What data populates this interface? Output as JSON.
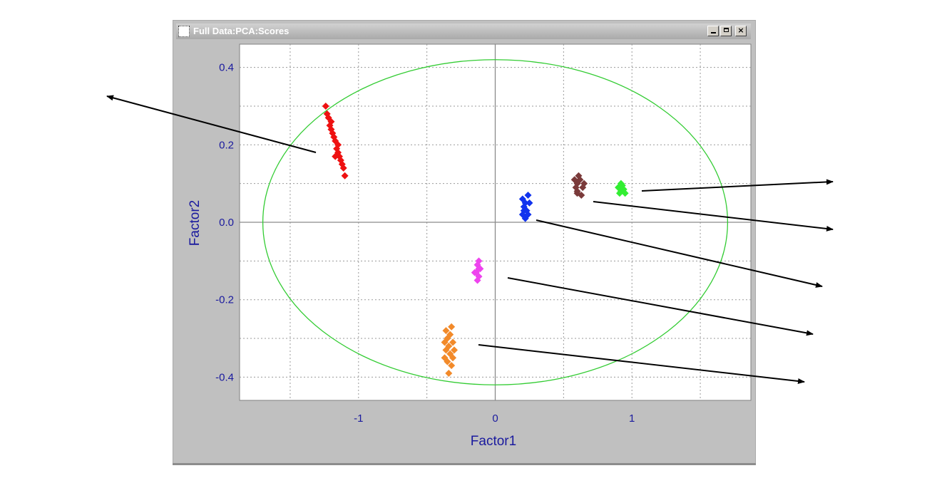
{
  "window": {
    "title": "Full Data:PCA:Scores",
    "buttons": {
      "minimize": "minimize",
      "maximize": "maximize",
      "close": "×"
    }
  },
  "colors": {
    "axis_text": "#1a1a9e",
    "ellipse": "#33cc33",
    "red": "#ee1111",
    "brown": "#7a3a3a",
    "green": "#33ee33",
    "blue": "#1133ee",
    "magenta": "#ee44ee",
    "orange": "#f28a2a"
  },
  "chart_data": {
    "type": "scatter",
    "title": "",
    "xlabel": "Factor1",
    "ylabel": "Factor2",
    "xlim": [
      -1.87,
      1.87
    ],
    "ylim": [
      -0.46,
      0.46
    ],
    "grid": true,
    "x_ticks": [
      -1,
      0,
      1
    ],
    "x_tick_labels": [
      "-1",
      "0",
      "1"
    ],
    "y_ticks": [
      0.4,
      0.2,
      0.0,
      -0.2,
      -0.4
    ],
    "y_tick_labels": [
      "0.4",
      "0.2",
      "0.0",
      "-0.2",
      "-0.4"
    ],
    "ellipse": {
      "cx": 0,
      "cy": 0,
      "rx": 1.7,
      "ry": 0.42
    },
    "series": [
      {
        "color": "#ee1111",
        "points": [
          [
            -1.24,
            0.3
          ],
          [
            -1.23,
            0.28
          ],
          [
            -1.22,
            0.27
          ],
          [
            -1.21,
            0.25
          ],
          [
            -1.2,
            0.24
          ],
          [
            -1.19,
            0.23
          ],
          [
            -1.18,
            0.22
          ],
          [
            -1.17,
            0.21
          ],
          [
            -1.16,
            0.19
          ],
          [
            -1.15,
            0.18
          ],
          [
            -1.14,
            0.17
          ],
          [
            -1.13,
            0.16
          ],
          [
            -1.12,
            0.15
          ],
          [
            -1.11,
            0.14
          ],
          [
            -1.1,
            0.12
          ],
          [
            -1.15,
            0.2
          ],
          [
            -1.2,
            0.26
          ],
          [
            -1.17,
            0.17
          ]
        ]
      },
      {
        "color": "#7a3a3a",
        "points": [
          [
            0.58,
            0.11
          ],
          [
            0.6,
            0.1
          ],
          [
            0.62,
            0.11
          ],
          [
            0.64,
            0.09
          ],
          [
            0.6,
            0.08
          ],
          [
            0.63,
            0.07
          ],
          [
            0.59,
            0.09
          ],
          [
            0.65,
            0.1
          ],
          [
            0.61,
            0.12
          ],
          [
            0.6,
            0.075
          ]
        ]
      },
      {
        "color": "#33ee33",
        "points": [
          [
            0.9,
            0.09
          ],
          [
            0.92,
            0.08
          ],
          [
            0.94,
            0.085
          ],
          [
            0.91,
            0.075
          ],
          [
            0.93,
            0.095
          ],
          [
            0.95,
            0.075
          ],
          [
            0.92,
            0.1
          ]
        ]
      },
      {
        "color": "#1133ee",
        "points": [
          [
            0.2,
            0.06
          ],
          [
            0.22,
            0.05
          ],
          [
            0.24,
            0.07
          ],
          [
            0.21,
            0.04
          ],
          [
            0.23,
            0.03
          ],
          [
            0.2,
            0.02
          ],
          [
            0.22,
            0.01
          ],
          [
            0.24,
            0.02
          ],
          [
            0.21,
            0.03
          ],
          [
            0.25,
            0.05
          ]
        ]
      },
      {
        "color": "#ee44ee",
        "points": [
          [
            -0.12,
            -0.1
          ],
          [
            -0.13,
            -0.11
          ],
          [
            -0.11,
            -0.12
          ],
          [
            -0.14,
            -0.13
          ],
          [
            -0.12,
            -0.14
          ],
          [
            -0.15,
            -0.13
          ],
          [
            -0.13,
            -0.15
          ],
          [
            -0.12,
            -0.12
          ]
        ]
      },
      {
        "color": "#f28a2a",
        "points": [
          [
            -0.36,
            -0.28
          ],
          [
            -0.32,
            -0.27
          ],
          [
            -0.35,
            -0.3
          ],
          [
            -0.33,
            -0.29
          ],
          [
            -0.37,
            -0.31
          ],
          [
            -0.34,
            -0.32
          ],
          [
            -0.31,
            -0.31
          ],
          [
            -0.36,
            -0.33
          ],
          [
            -0.33,
            -0.34
          ],
          [
            -0.31,
            -0.35
          ],
          [
            -0.35,
            -0.36
          ],
          [
            -0.32,
            -0.37
          ],
          [
            -0.34,
            -0.39
          ],
          [
            -0.37,
            -0.35
          ],
          [
            -0.3,
            -0.33
          ]
        ]
      }
    ]
  }
}
